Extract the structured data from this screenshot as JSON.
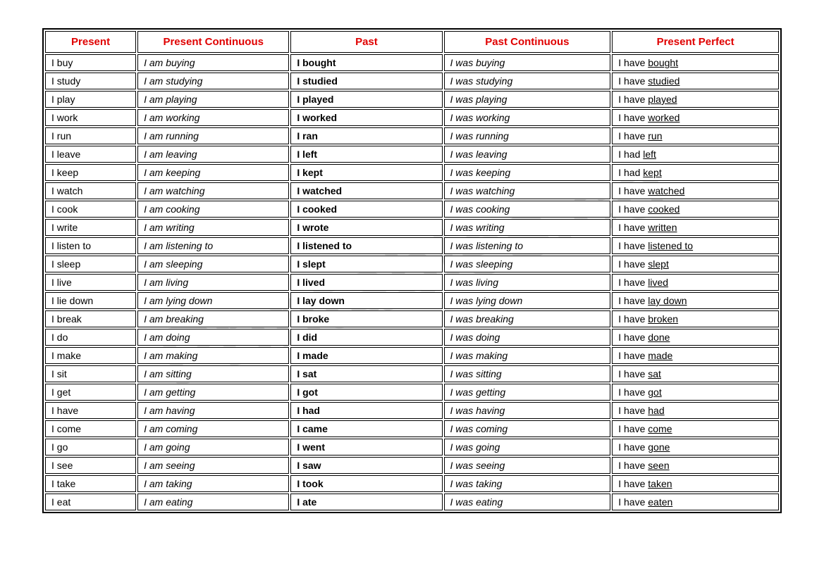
{
  "watermark": "Printables.co",
  "table": {
    "headers": [
      "Present",
      "Present Continuous",
      "Past",
      "Past Continuous",
      "Present Perfect"
    ],
    "header_color": "#e00000",
    "border_color": "#000000",
    "rows": [
      {
        "present": "I buy",
        "prescont": "I am buying",
        "past": "I bought",
        "pastcont": "I was buying",
        "perfect_pre": "I have ",
        "perfect_u": "bought"
      },
      {
        "present": "I study",
        "prescont": "I am studying",
        "past": "I studied",
        "pastcont": "I was studying",
        "perfect_pre": "I have ",
        "perfect_u": "studied"
      },
      {
        "present": "I play",
        "prescont": "I am playing",
        "past": "I played",
        "pastcont": "I was playing",
        "perfect_pre": "I have ",
        "perfect_u": "played"
      },
      {
        "present": "I work",
        "prescont": "I am working",
        "past": "I worked",
        "pastcont": "I was working",
        "perfect_pre": "I have ",
        "perfect_u": "worked"
      },
      {
        "present": "I run",
        "prescont": "I am running",
        "past": "I ran",
        "pastcont": "I was running",
        "perfect_pre": "I have ",
        "perfect_u": "run"
      },
      {
        "present": "I leave",
        "prescont": "I am leaving",
        "past": "I left",
        "pastcont": "I was leaving",
        "perfect_pre": "I had ",
        "perfect_u": "left"
      },
      {
        "present": "I keep",
        "prescont": "I am keeping",
        "past": "I kept",
        "pastcont": "I was keeping",
        "perfect_pre": "I had ",
        "perfect_u": "kept"
      },
      {
        "present": "I watch",
        "prescont": "I am watching",
        "past": "I watched",
        "pastcont": "I was watching",
        "perfect_pre": "I have ",
        "perfect_u": "watched"
      },
      {
        "present": "I cook",
        "prescont": "I am cooking",
        "past": "I cooked",
        "pastcont": "I was cooking",
        "perfect_pre": "I have ",
        "perfect_u": "cooked"
      },
      {
        "present": "I write",
        "prescont": "I am writing",
        "past": "I wrote",
        "pastcont": "I was writing",
        "perfect_pre": "I have ",
        "perfect_u": "written"
      },
      {
        "present": "I listen to",
        "prescont": "I am listening to",
        "past": "I listened to",
        "pastcont": "I was listening to",
        "perfect_pre": "I have ",
        "perfect_u": "listened to"
      },
      {
        "present": "I sleep",
        "prescont": "I am sleeping",
        "past": "I slept",
        "pastcont": "I was sleeping",
        "perfect_pre": "I have ",
        "perfect_u": "slept"
      },
      {
        "present": "I live",
        "prescont": "I am living",
        "past": "I lived",
        "pastcont": "I was living",
        "perfect_pre": "I have ",
        "perfect_u": "lived"
      },
      {
        "present": "I lie down",
        "prescont": "I am lying down",
        "past": "I lay down",
        "pastcont": "I was lying down",
        "perfect_pre": "I have ",
        "perfect_u": "lay down"
      },
      {
        "present": "I break",
        "prescont": "I am breaking",
        "past": "I broke",
        "pastcont": "I was breaking",
        "perfect_pre": "I have ",
        "perfect_u": "broken"
      },
      {
        "present": "I do",
        "prescont": "I am doing",
        "past": "I did",
        "pastcont": "I was doing",
        "perfect_pre": "I have ",
        "perfect_u": "done"
      },
      {
        "present": "I make",
        "prescont": "I am making",
        "past": "I made",
        "pastcont": "I was making",
        "perfect_pre": "I have ",
        "perfect_u": "made"
      },
      {
        "present": "I sit",
        "prescont": "I am sitting",
        "past": "I sat",
        "pastcont": "I was sitting",
        "perfect_pre": "I have ",
        "perfect_u": "sat"
      },
      {
        "present": "I get",
        "prescont": "I am getting",
        "past": "I got",
        "pastcont": "I was getting",
        "perfect_pre": "I have ",
        "perfect_u": "got"
      },
      {
        "present": "I have",
        "prescont": "I am having",
        "past": "I had",
        "pastcont": "I was having",
        "perfect_pre": "I have ",
        "perfect_u": "had"
      },
      {
        "present": "I come",
        "prescont": "I am coming",
        "past": "I came",
        "pastcont": "I was coming",
        "perfect_pre": "I have ",
        "perfect_u": "come"
      },
      {
        "present": "I go",
        "prescont": "I am going",
        "past": "I went",
        "pastcont": "I was going",
        "perfect_pre": "I have ",
        "perfect_u": "gone"
      },
      {
        "present": "I see",
        "prescont": "I am seeing",
        "past": "I saw",
        "pastcont": "I was seeing",
        "perfect_pre": "I have ",
        "perfect_u": "seen"
      },
      {
        "present": "I take",
        "prescont": "I am taking",
        "past": "I took",
        "pastcont": "I was taking",
        "perfect_pre": "I have ",
        "perfect_u": "taken"
      },
      {
        "present": "I eat",
        "prescont": "I am eating",
        "past": "I ate",
        "pastcont": "I was eating",
        "perfect_pre": "I have ",
        "perfect_u": "eaten"
      }
    ]
  }
}
